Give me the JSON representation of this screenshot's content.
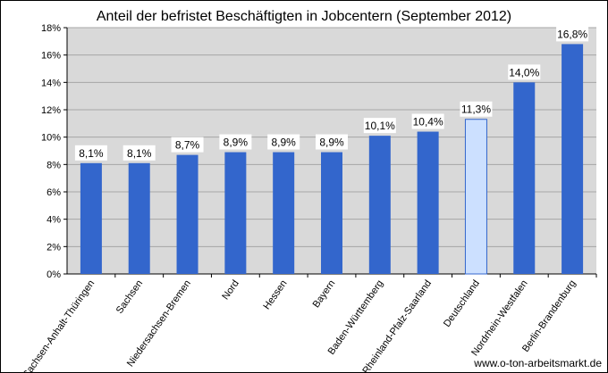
{
  "chart_data": {
    "type": "bar",
    "title": "Anteil der befristet Beschäftigten in Jobcentern (September 2012)",
    "categories": [
      "Sachsen-Anhalt-Thüringen",
      "Sachsen",
      "Niedersachsen-Bremen",
      "Nord",
      "Hessen",
      "Bayern",
      "Baden-Württemberg",
      "Rheinland-Pfalz-Saarland",
      "Deutschland",
      "Nordrhein-Westfalen",
      "Berlin-Brandenburg"
    ],
    "values": [
      8.1,
      8.1,
      8.7,
      8.9,
      8.9,
      8.9,
      10.1,
      10.4,
      11.3,
      14.0,
      16.8
    ],
    "data_labels": [
      "8,1%",
      "8,1%",
      "8,7%",
      "8,9%",
      "8,9%",
      "8,9%",
      "10,1%",
      "10,4%",
      "11,3%",
      "14,0%",
      "16,8%"
    ],
    "highlighted_category": "Deutschland",
    "ylim": [
      0,
      18
    ],
    "yticks": [
      0,
      2,
      4,
      6,
      8,
      10,
      12,
      14,
      16,
      18
    ],
    "ytick_labels": [
      "0%",
      "2%",
      "4%",
      "6%",
      "8%",
      "10%",
      "12%",
      "14%",
      "16%",
      "18%"
    ],
    "grid": true,
    "xlabel": "",
    "ylabel": "",
    "colors": {
      "bar": "#3366CC",
      "bar_highlight": "#CCE0FF",
      "bar_highlight_border": "#3366CC",
      "plot_background": "#D9D9D9",
      "gridline": "#A6A6A6"
    }
  },
  "source": "www.o-ton-arbeitsmarkt.de"
}
